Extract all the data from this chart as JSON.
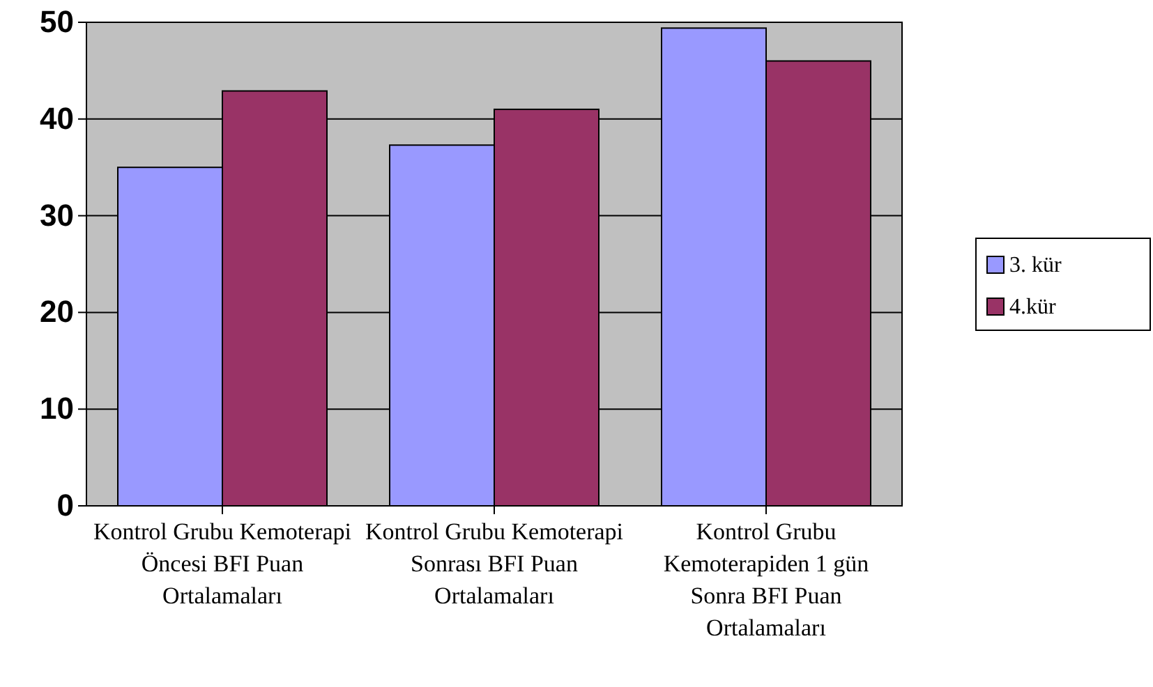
{
  "chart_data": {
    "type": "bar",
    "categories": [
      "Kontrol Grubu Kemoterapi Öncesi BFI Puan Ortalamaları",
      "Kontrol Grubu Kemoterapi Sonrası BFI Puan Ortalamaları",
      "Kontrol Grubu Kemoterapiden 1 gün Sonra BFI Puan Ortalamaları"
    ],
    "series": [
      {
        "name": "3. kür",
        "color": "#9999ff",
        "values": [
          35,
          37.3,
          49.4
        ]
      },
      {
        "name": "4.kür",
        "color": "#993366",
        "values": [
          42.9,
          41,
          46
        ]
      }
    ],
    "ylim": [
      0,
      50
    ],
    "yticks": [
      0,
      10,
      20,
      30,
      40,
      50
    ],
    "grid": "y",
    "legend": "right"
  }
}
